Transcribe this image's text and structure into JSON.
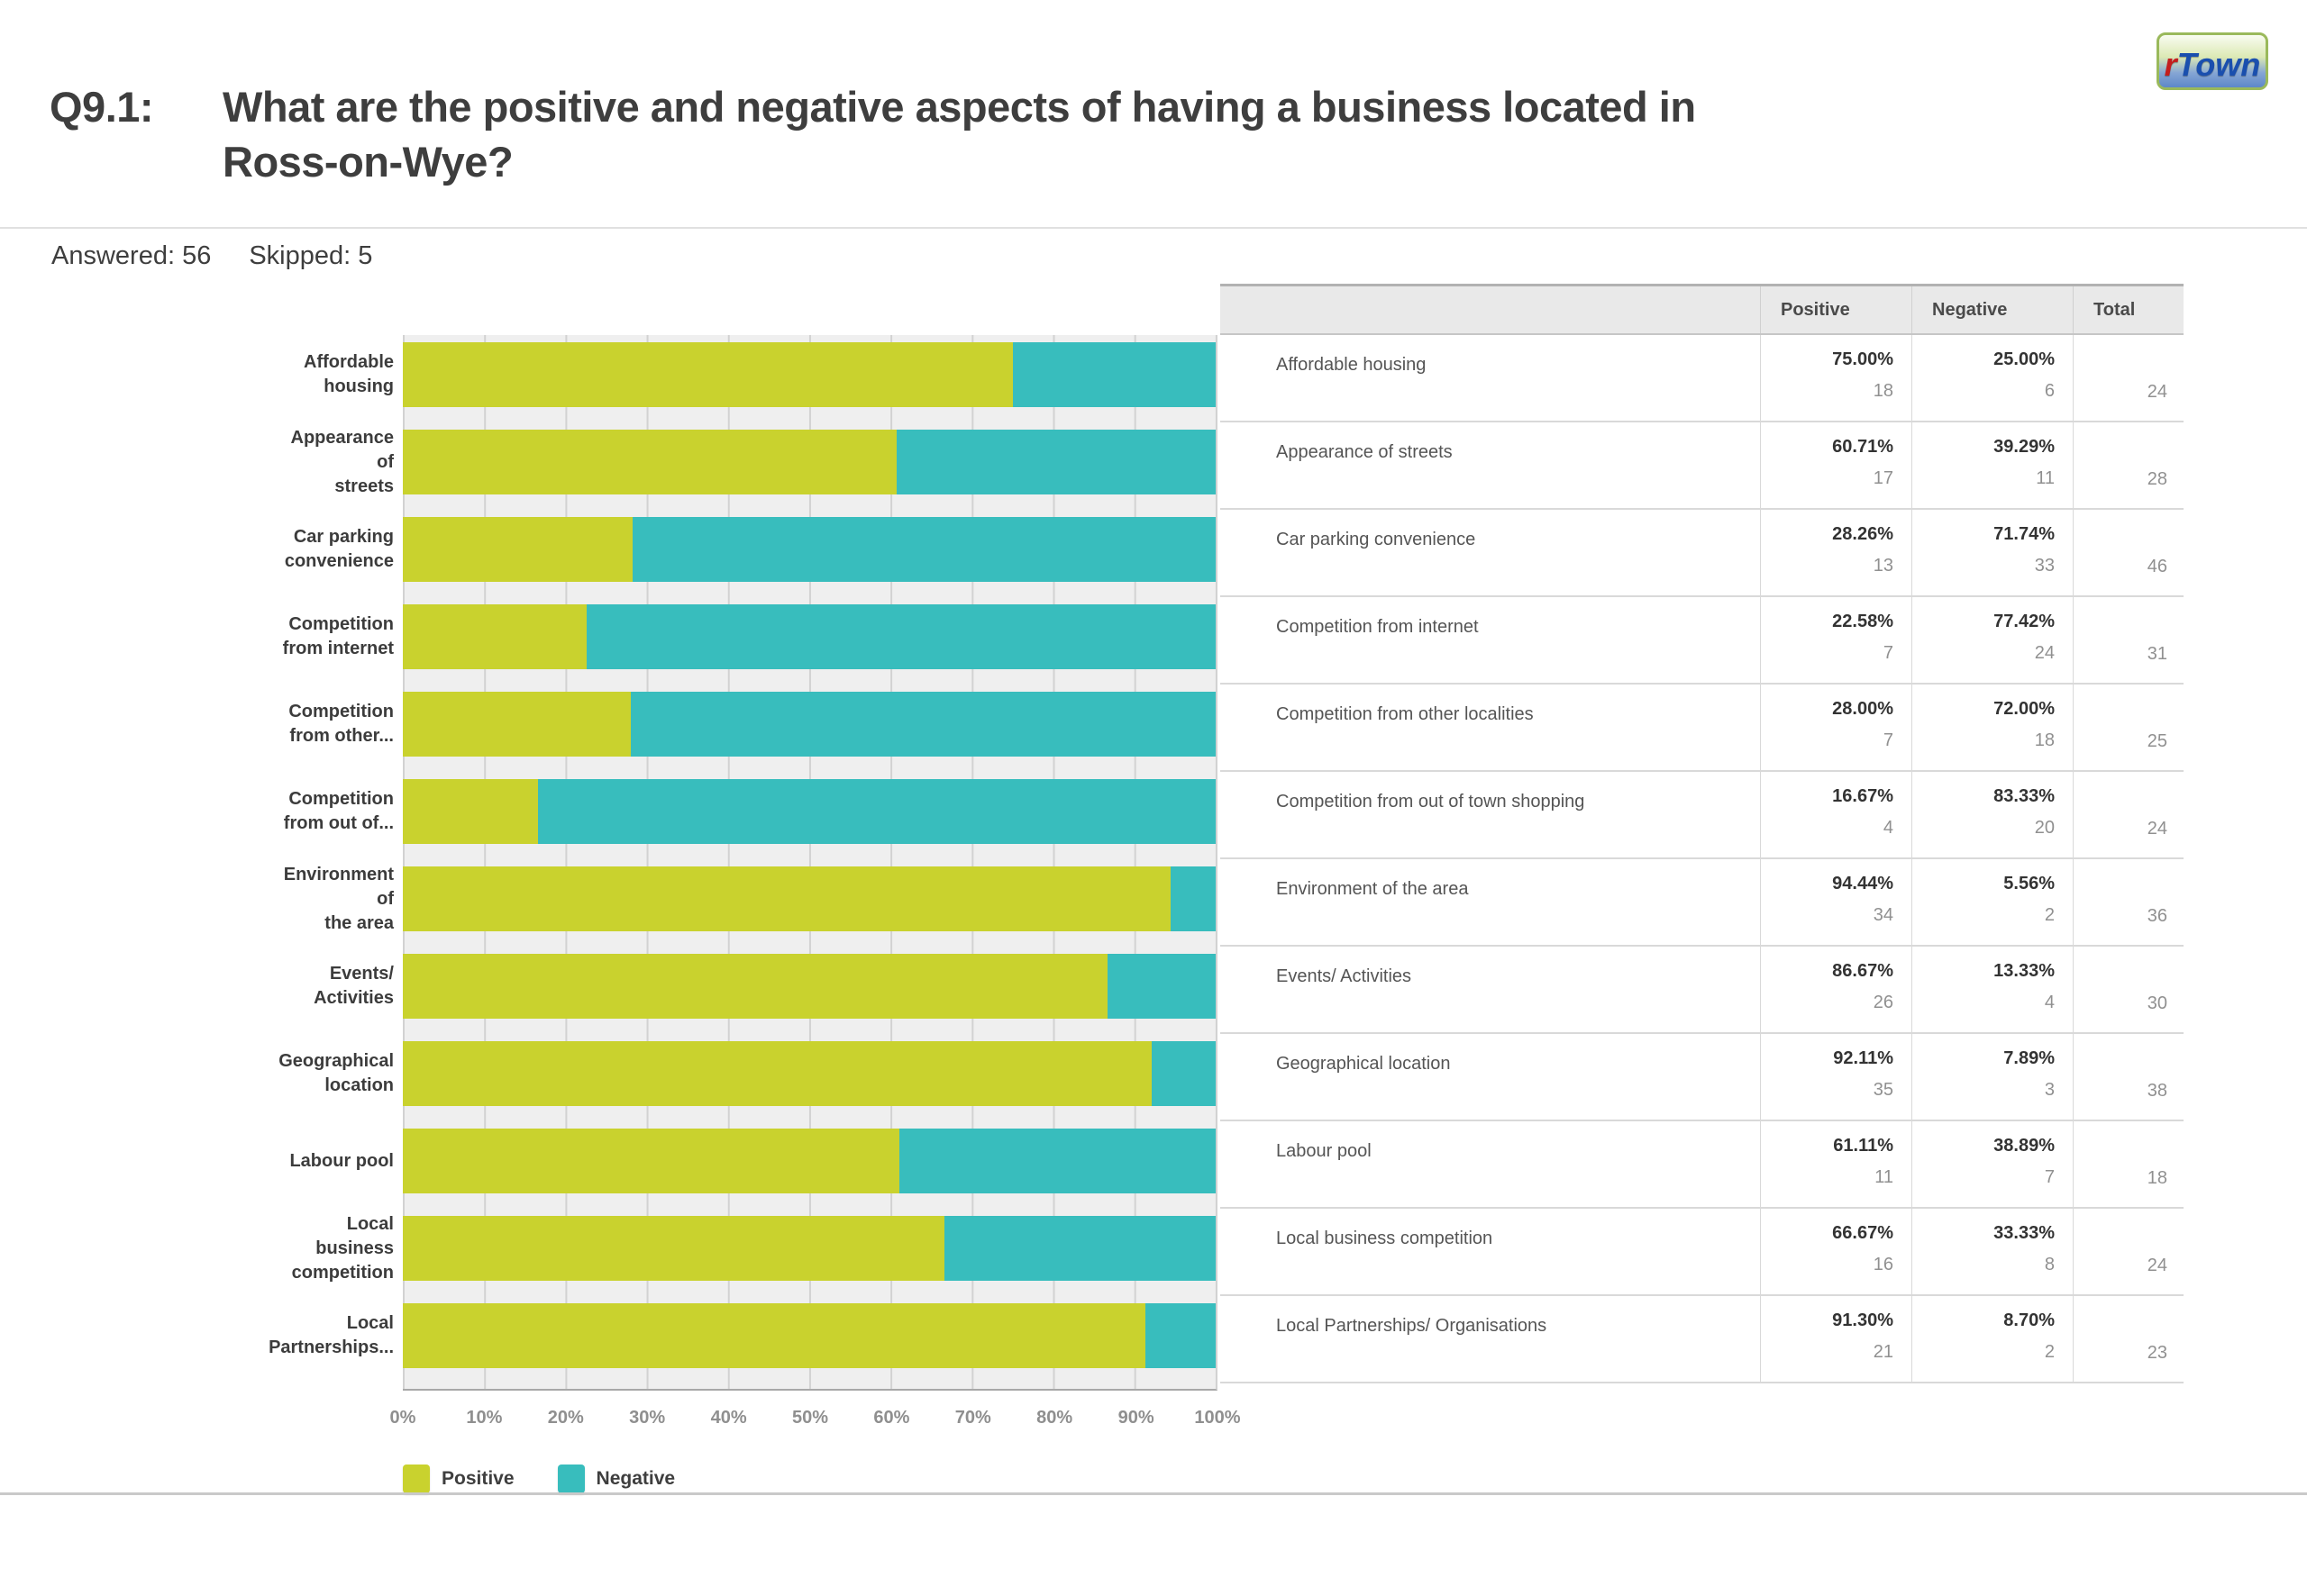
{
  "logo": {
    "part1": "r",
    "part2": "Town"
  },
  "header": {
    "question_prefix": "Q9.1:",
    "question_line1": "What are the positive and negative aspects of having a business located in",
    "question_line2": "Ross-on-Wye?",
    "answered": "Answered: 56",
    "skipped": "Skipped: 5"
  },
  "chart_data": {
    "type": "bar",
    "orientation": "horizontal",
    "stacked": true,
    "grid": true,
    "xlim": [
      0,
      100
    ],
    "x_ticks": [
      "0%",
      "10%",
      "20%",
      "30%",
      "40%",
      "50%",
      "60%",
      "70%",
      "80%",
      "90%",
      "100%"
    ],
    "legend_position": "bottom",
    "categories": [
      "Affordable housing",
      "Appearance of streets",
      "Car parking convenience",
      "Competition from internet",
      "Competition from other localities",
      "Competition from out of town shopping",
      "Environment of the area",
      "Events/ Activities",
      "Geographical location",
      "Labour pool",
      "Local business competition",
      "Local Partnerships/ Organisations"
    ],
    "category_label_lines": [
      [
        "Affordable",
        "housing"
      ],
      [
        "Appearance",
        "of",
        "streets"
      ],
      [
        "Car parking",
        "convenience"
      ],
      [
        "Competition",
        "from internet"
      ],
      [
        "Competition",
        "from other..."
      ],
      [
        "Competition",
        "from out of..."
      ],
      [
        "Environment",
        "of",
        "the area"
      ],
      [
        "Events/",
        "Activities"
      ],
      [
        "Geographical",
        "location"
      ],
      [
        "Labour pool"
      ],
      [
        "Local",
        "business",
        "competition"
      ],
      [
        "Local",
        "Partnerships..."
      ]
    ],
    "series": [
      {
        "name": "Positive",
        "color": "#c9d22e",
        "values": [
          75.0,
          60.71,
          28.26,
          22.58,
          28.0,
          16.67,
          94.44,
          86.67,
          92.11,
          61.11,
          66.67,
          91.3
        ]
      },
      {
        "name": "Negative",
        "color": "#38bdbd",
        "values": [
          25.0,
          39.29,
          71.74,
          77.42,
          72.0,
          83.33,
          5.56,
          13.33,
          7.89,
          38.89,
          33.33,
          8.7
        ]
      }
    ]
  },
  "table": {
    "columns": [
      "Positive",
      "Negative",
      "Total"
    ],
    "rows": [
      {
        "label": "Affordable housing",
        "positive_pct": "75.00%",
        "positive_n": "18",
        "negative_pct": "25.00%",
        "negative_n": "6",
        "total": "24"
      },
      {
        "label": "Appearance of streets",
        "positive_pct": "60.71%",
        "positive_n": "17",
        "negative_pct": "39.29%",
        "negative_n": "11",
        "total": "28"
      },
      {
        "label": "Car parking convenience",
        "positive_pct": "28.26%",
        "positive_n": "13",
        "negative_pct": "71.74%",
        "negative_n": "33",
        "total": "46"
      },
      {
        "label": "Competition from internet",
        "positive_pct": "22.58%",
        "positive_n": "7",
        "negative_pct": "77.42%",
        "negative_n": "24",
        "total": "31"
      },
      {
        "label": "Competition from other localities",
        "positive_pct": "28.00%",
        "positive_n": "7",
        "negative_pct": "72.00%",
        "negative_n": "18",
        "total": "25"
      },
      {
        "label": "Competition from out of town shopping",
        "positive_pct": "16.67%",
        "positive_n": "4",
        "negative_pct": "83.33%",
        "negative_n": "20",
        "total": "24"
      },
      {
        "label": "Environment of the area",
        "positive_pct": "94.44%",
        "positive_n": "34",
        "negative_pct": "5.56%",
        "negative_n": "2",
        "total": "36"
      },
      {
        "label": "Events/ Activities",
        "positive_pct": "86.67%",
        "positive_n": "26",
        "negative_pct": "13.33%",
        "negative_n": "4",
        "total": "30"
      },
      {
        "label": "Geographical location",
        "positive_pct": "92.11%",
        "positive_n": "35",
        "negative_pct": "7.89%",
        "negative_n": "3",
        "total": "38"
      },
      {
        "label": "Labour pool",
        "positive_pct": "61.11%",
        "positive_n": "11",
        "negative_pct": "38.89%",
        "negative_n": "7",
        "total": "18"
      },
      {
        "label": "Local business competition",
        "positive_pct": "66.67%",
        "positive_n": "16",
        "negative_pct": "33.33%",
        "negative_n": "8",
        "total": "24"
      },
      {
        "label": "Local Partnerships/ Organisations",
        "positive_pct": "91.30%",
        "positive_n": "21",
        "negative_pct": "8.70%",
        "negative_n": "2",
        "total": "23"
      }
    ]
  }
}
